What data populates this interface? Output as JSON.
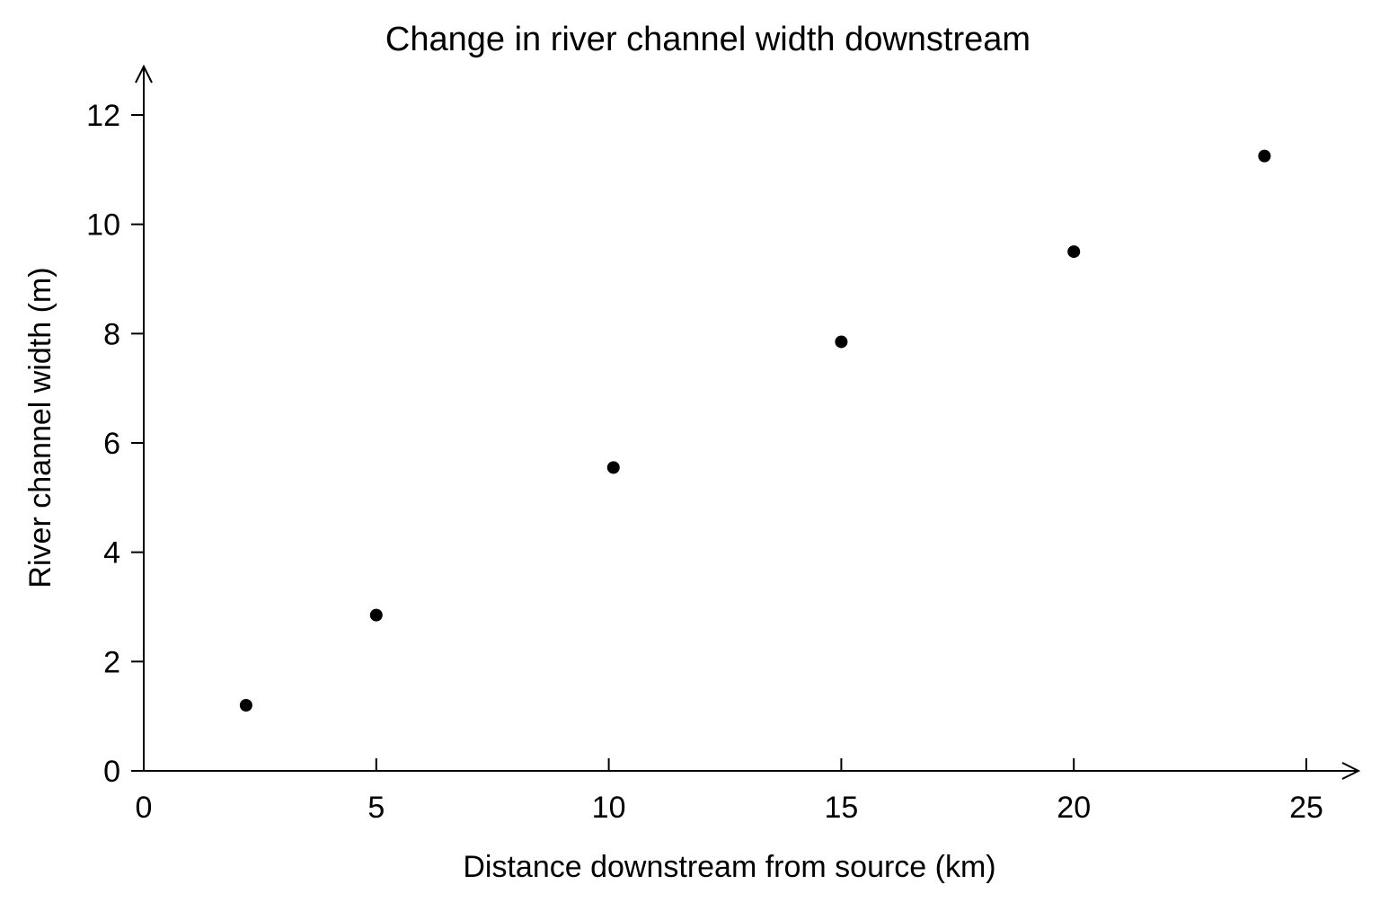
{
  "chart_data": {
    "type": "scatter",
    "title": "Change in river channel width downstream",
    "xlabel": "Distance downstream from source (km)",
    "ylabel": "River channel width (m)",
    "xlim": [
      0,
      25
    ],
    "ylim": [
      0,
      12
    ],
    "x_ticks": [
      0,
      5,
      10,
      15,
      20,
      25
    ],
    "y_ticks": [
      0,
      2,
      4,
      6,
      8,
      10,
      12
    ],
    "x_tick_labels": [
      "0",
      "5",
      "10",
      "15",
      "20",
      "25"
    ],
    "y_tick_labels": [
      "0",
      "2",
      "4",
      "6",
      "8",
      "10",
      "12"
    ],
    "grid": false,
    "marker_color": "#000000",
    "points": [
      {
        "x": 2.2,
        "y": 1.2
      },
      {
        "x": 5.0,
        "y": 2.85
      },
      {
        "x": 10.1,
        "y": 5.55
      },
      {
        "x": 15.0,
        "y": 7.85
      },
      {
        "x": 20.0,
        "y": 9.5
      },
      {
        "x": 24.1,
        "y": 11.25
      }
    ]
  }
}
